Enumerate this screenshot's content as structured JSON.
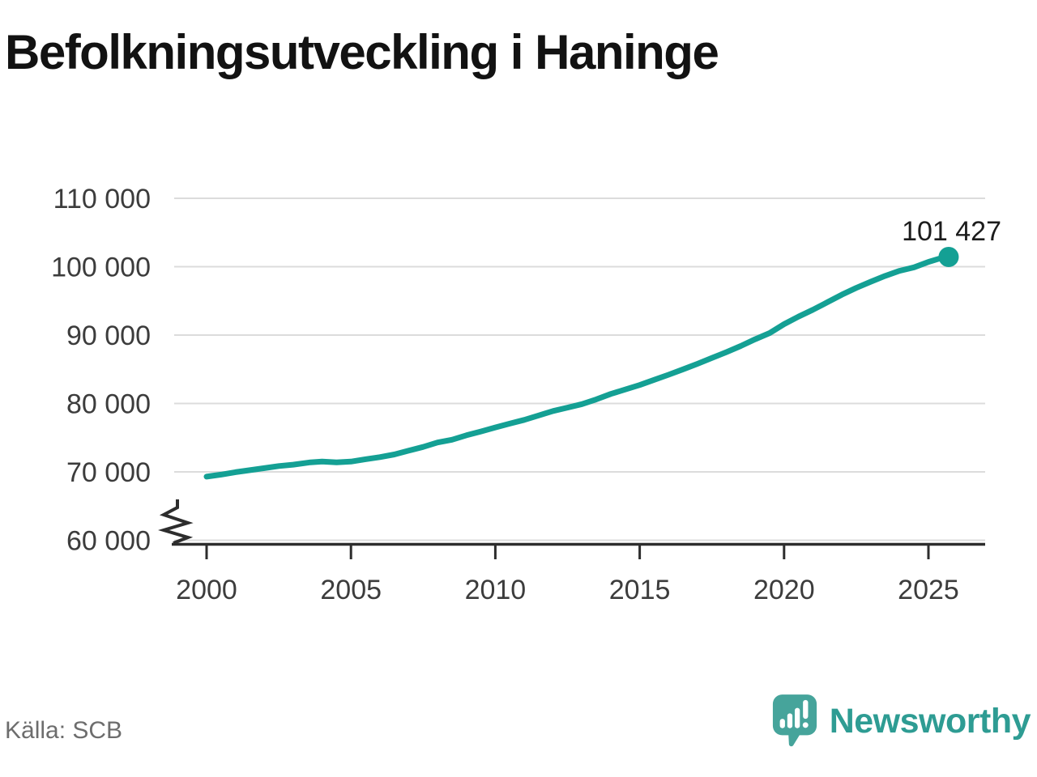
{
  "title": "Befolkningsutveckling i Haninge",
  "source": {
    "label": "Källa: SCB"
  },
  "brand": {
    "wordmark": "Newsworthy",
    "icon": "speech-bubble-bar-chart-icon"
  },
  "colors": {
    "line": "#14a094",
    "marker": "#14a094",
    "grid": "#dcdcdc",
    "axis": "#2d2d2d",
    "tick_text": "#3c3c3c",
    "annotation_text": "#1c1c1c",
    "source_text": "#6d6d6d",
    "brand_teal": "#2e9c93",
    "brand_icon_teal": "#46a49b"
  },
  "chart_data": {
    "type": "line",
    "title": "Befolkningsutveckling i Haninge",
    "xlabel": "",
    "ylabel": "",
    "xticks": [
      2000,
      2005,
      2010,
      2015,
      2020,
      2025
    ],
    "yticks": [
      {
        "value": 110000,
        "label": "110 000"
      },
      {
        "value": 100000,
        "label": "100 000"
      },
      {
        "value": 90000,
        "label": "90 000"
      },
      {
        "value": 80000,
        "label": "80 000"
      },
      {
        "value": 70000,
        "label": "70 000"
      },
      {
        "value": 60000,
        "label": "60 000"
      }
    ],
    "ylim": [
      60000,
      110000
    ],
    "xlim": [
      2000,
      2027
    ],
    "y_axis_break": true,
    "grid": "horizontal",
    "legend": "none",
    "series": [
      {
        "points": [
          [
            2000,
            69300
          ],
          [
            2000.5,
            69600
          ],
          [
            2001,
            69950
          ],
          [
            2001.5,
            70250
          ],
          [
            2002,
            70550
          ],
          [
            2002.5,
            70850
          ],
          [
            2003,
            71050
          ],
          [
            2003.6,
            71400
          ],
          [
            2004,
            71500
          ],
          [
            2004.5,
            71400
          ],
          [
            2005,
            71500
          ],
          [
            2005.5,
            71850
          ],
          [
            2006,
            72150
          ],
          [
            2006.5,
            72550
          ],
          [
            2007,
            73100
          ],
          [
            2007.5,
            73650
          ],
          [
            2008,
            74300
          ],
          [
            2008.5,
            74700
          ],
          [
            2009,
            75350
          ],
          [
            2009.5,
            75900
          ],
          [
            2010,
            76500
          ],
          [
            2010.5,
            77050
          ],
          [
            2011,
            77600
          ],
          [
            2011.5,
            78250
          ],
          [
            2012,
            78900
          ],
          [
            2012.5,
            79400
          ],
          [
            2013,
            79900
          ],
          [
            2013.5,
            80600
          ],
          [
            2014,
            81400
          ],
          [
            2014.5,
            82050
          ],
          [
            2015,
            82700
          ],
          [
            2015.5,
            83450
          ],
          [
            2016,
            84200
          ],
          [
            2016.5,
            85000
          ],
          [
            2017,
            85800
          ],
          [
            2017.5,
            86650
          ],
          [
            2018,
            87500
          ],
          [
            2018.5,
            88400
          ],
          [
            2019,
            89400
          ],
          [
            2019.5,
            90300
          ],
          [
            2020,
            91600
          ],
          [
            2020.5,
            92700
          ],
          [
            2021,
            93700
          ],
          [
            2021.5,
            94800
          ],
          [
            2022,
            95900
          ],
          [
            2022.5,
            96900
          ],
          [
            2023,
            97800
          ],
          [
            2023.5,
            98650
          ],
          [
            2024,
            99400
          ],
          [
            2024.5,
            99900
          ],
          [
            2025,
            100700
          ],
          [
            2025.35,
            101150
          ],
          [
            2025.7,
            101427
          ]
        ]
      }
    ],
    "latest_point": {
      "x": 2025.7,
      "value": 101427,
      "label": "101 427"
    }
  }
}
